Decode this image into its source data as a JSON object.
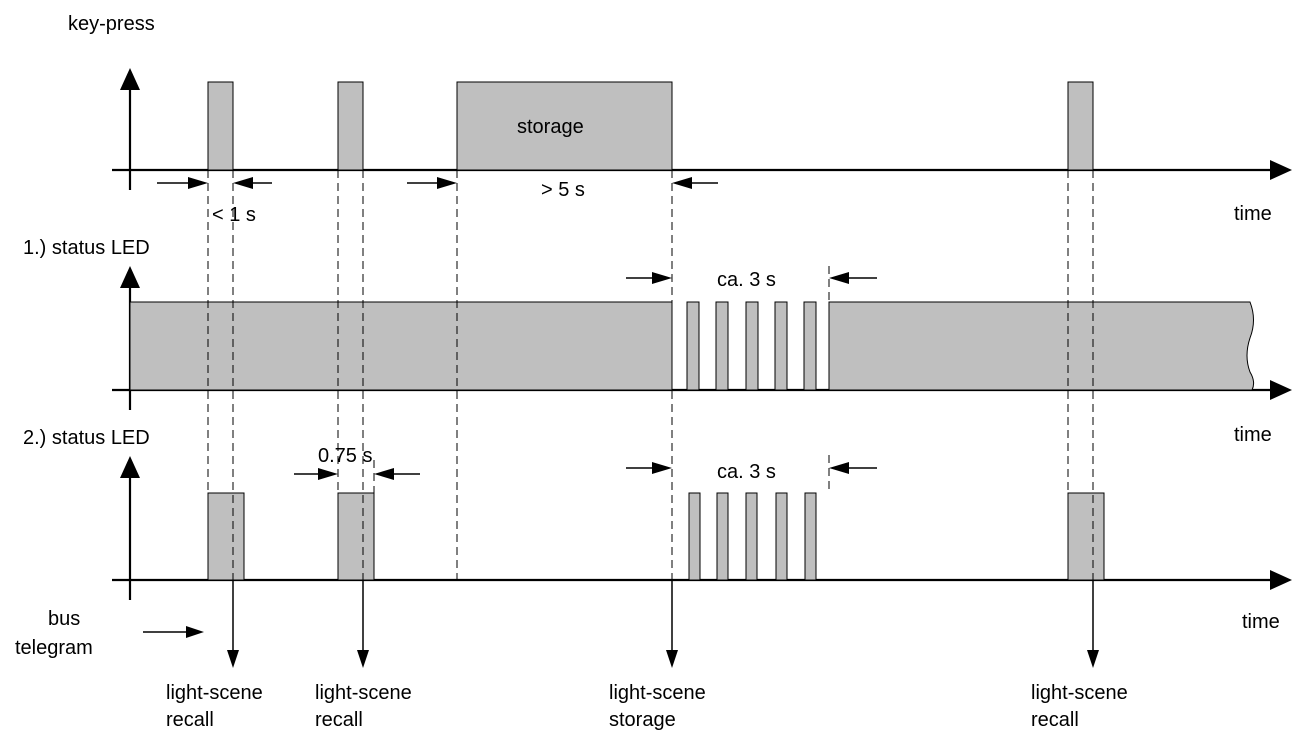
{
  "rows": {
    "key_press": "key-press",
    "status_led_1": "1.) status LED",
    "status_led_2": "2.) status LED",
    "bus": [
      "bus",
      "telegram"
    ]
  },
  "axis_label": "time",
  "pulse_label": "storage",
  "durations": {
    "short_press": "< 1 s",
    "long_press": "> 5 s",
    "flash_led1": "ca. 3 s",
    "flash_led2": "ca. 3 s",
    "led2_on": "0.75 s"
  },
  "telegrams": [
    [
      "light-scene",
      "recall"
    ],
    [
      "light-scene",
      "recall"
    ],
    [
      "light-scene",
      "storage"
    ],
    [
      "light-scene",
      "recall"
    ]
  ]
}
